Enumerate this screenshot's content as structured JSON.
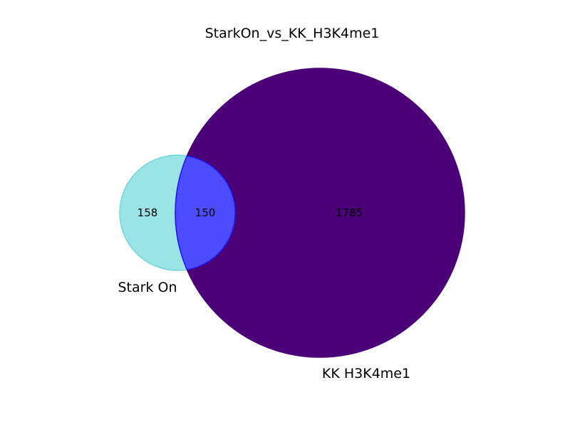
{
  "title": "StarkOn_vs_KK_H3K4me1",
  "sets": [
    {
      "name": "Stark On",
      "color": "#9ae4e6",
      "edge": "#6fd9db"
    },
    {
      "name": "KK H3K4me1",
      "color": "#4b0078",
      "edge": "#4b0078"
    }
  ],
  "regions": {
    "only_a": "158",
    "intersection": "150",
    "only_b": "1785"
  },
  "colors": {
    "intersection_fill": "#4d4dff",
    "intersection_edge": "#1a1aff"
  }
}
